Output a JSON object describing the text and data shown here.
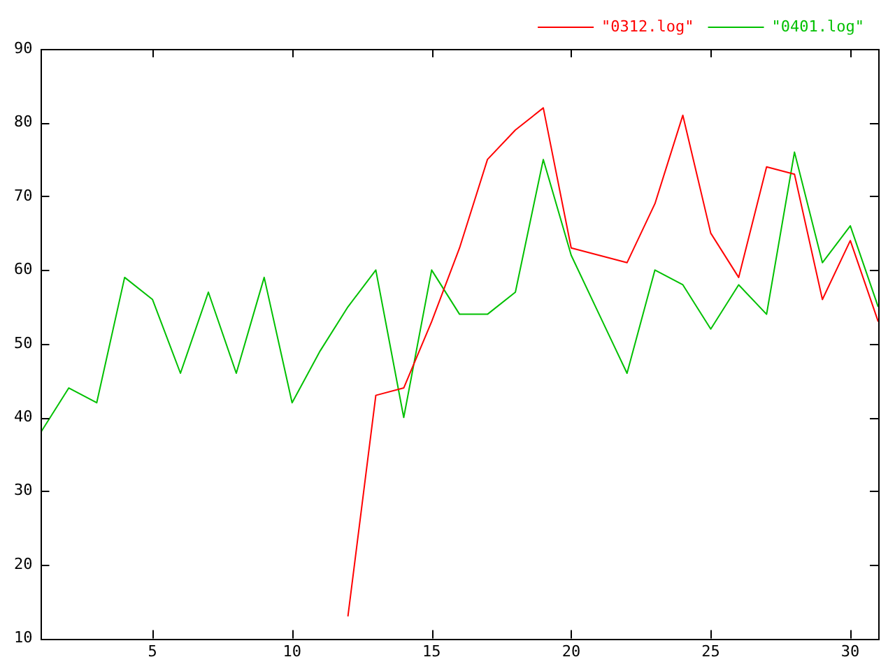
{
  "chart_data": {
    "type": "line",
    "x": [
      1,
      2,
      3,
      4,
      5,
      6,
      7,
      8,
      9,
      10,
      11,
      12,
      13,
      14,
      15,
      16,
      17,
      18,
      19,
      20,
      21,
      22,
      23,
      24,
      25,
      26,
      27,
      28,
      29,
      30,
      31
    ],
    "series": [
      {
        "name": "\"0312.log\"",
        "color": "#ff0000",
        "values": [
          null,
          null,
          null,
          null,
          null,
          null,
          null,
          null,
          null,
          null,
          null,
          13,
          43,
          44,
          53,
          63,
          75,
          79,
          82,
          63,
          62,
          61,
          69,
          81,
          65,
          59,
          74,
          73,
          56,
          64,
          53
        ]
      },
      {
        "name": "\"0401.log\"",
        "color": "#00c000",
        "values": [
          38,
          44,
          42,
          59,
          56,
          46,
          57,
          46,
          59,
          42,
          49,
          55,
          60,
          40,
          60,
          54,
          54,
          57,
          75,
          62,
          54,
          46,
          60,
          58,
          52,
          58,
          54,
          76,
          61,
          66,
          55
        ]
      }
    ],
    "xlim": [
      1,
      31
    ],
    "xticks": [
      5,
      10,
      15,
      20,
      25,
      30
    ],
    "ylim": [
      10,
      90
    ],
    "yticks": [
      10,
      20,
      30,
      40,
      50,
      60,
      70,
      80,
      90
    ],
    "grid": false,
    "legend": "top right",
    "marker": "none",
    "line_style": "solid"
  }
}
